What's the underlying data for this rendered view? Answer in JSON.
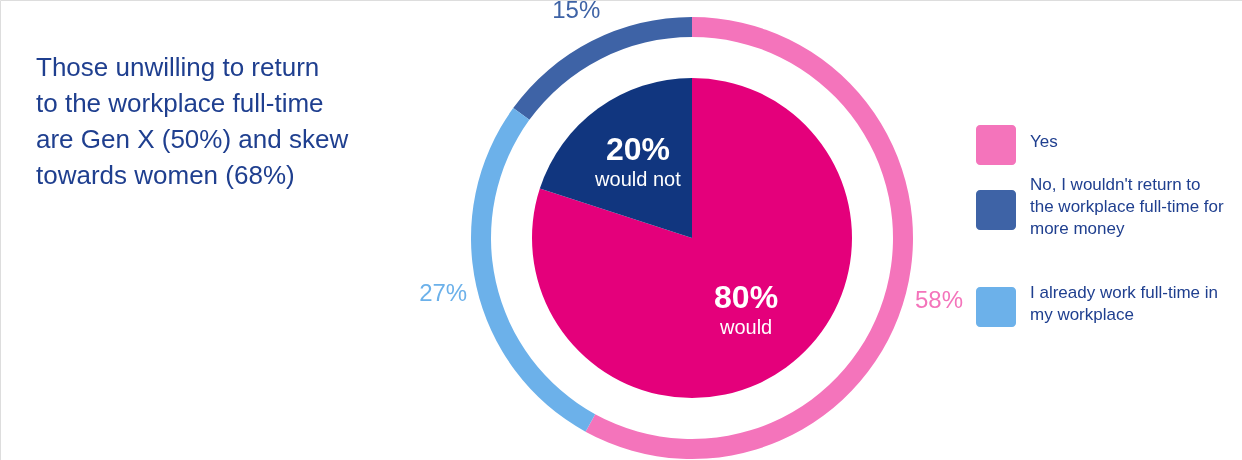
{
  "chart_data": [
    {
      "type": "donut",
      "categories": [
        "Yes",
        "No, I wouldn't return to the workplace full-time for more money",
        "I already work full-time in my workplace"
      ],
      "values": [
        58,
        15,
        27
      ],
      "colors": [
        "#f474bb",
        "#3e63a6",
        "#6cb1ea"
      ],
      "value_labels": [
        "58%",
        "15%",
        "27%"
      ],
      "legend": "right",
      "annotations": [
        "Those unwilling to return to the workplace full-time are Gen X (50%) and skew towards women (68%)"
      ]
    },
    {
      "type": "pie",
      "categories": [
        "would",
        "would not"
      ],
      "values": [
        80,
        20
      ],
      "colors": [
        "#e4007b",
        "#11367f"
      ],
      "value_labels": [
        "80%",
        "20%"
      ]
    }
  ]
}
